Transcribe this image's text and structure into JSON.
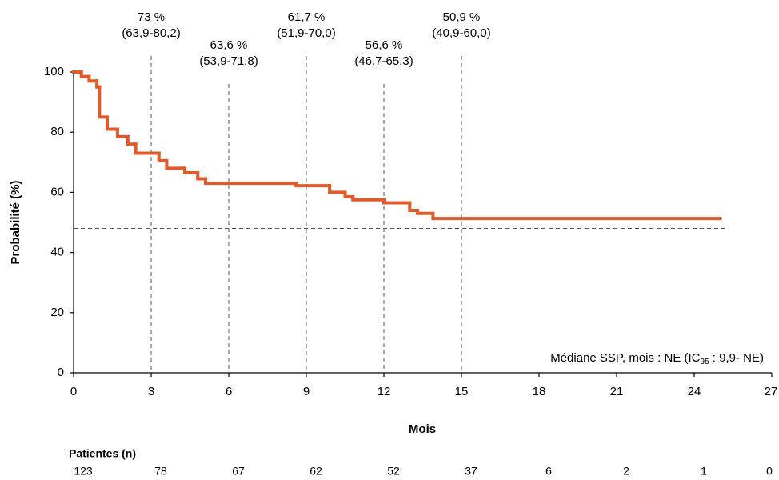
{
  "chart_data": {
    "type": "step",
    "x_label": "Mois",
    "y_label": "Probabilité (%)",
    "xlim": [
      0,
      27
    ],
    "xticks": [
      0,
      3,
      6,
      9,
      12,
      15,
      18,
      21,
      24,
      27
    ],
    "ylim": [
      0,
      100
    ],
    "yticks": [
      0,
      20,
      40,
      60,
      80,
      100
    ],
    "series": [
      {
        "color": "#e05a2b",
        "x": [
          0,
          0.3,
          0.6,
          0.9,
          1.0,
          1.3,
          1.7,
          2.1,
          2.4,
          3.3,
          3.6,
          4.3,
          4.8,
          5.1,
          8.6,
          9.9,
          10.5,
          10.8,
          12.0,
          13.0,
          13.3,
          13.9,
          25.0
        ],
        "values": [
          100,
          98.5,
          97,
          95,
          85,
          81,
          78.5,
          76,
          73,
          70.5,
          68,
          66.5,
          64.5,
          63,
          62.2,
          60,
          58.5,
          57.5,
          56.5,
          54,
          53,
          51.3,
          51.3
        ]
      }
    ],
    "reference_y": 48,
    "annotations": [
      {
        "x": 3,
        "label": "73 %",
        "ci": "(63,9-80,2)"
      },
      {
        "x": 6,
        "label": "63,6 %",
        "ci": "(53,9-71,8)"
      },
      {
        "x": 9,
        "label": "61,7 %",
        "ci": "(51,9-70,0)"
      },
      {
        "x": 12,
        "label": "56,6 %",
        "ci": "(46,7-65,3)"
      },
      {
        "x": 15,
        "label": "50,9 %",
        "ci": "(40,9-60,0)"
      }
    ],
    "median_text": {
      "before": "Médiane SSP, mois :  NE (IC",
      "sub": "95",
      "after": " : 9,9- NE)"
    },
    "risk_table": {
      "title": "Patientes (n)",
      "counts": [
        123,
        78,
        67,
        62,
        52,
        37,
        6,
        2,
        1,
        0
      ]
    }
  }
}
